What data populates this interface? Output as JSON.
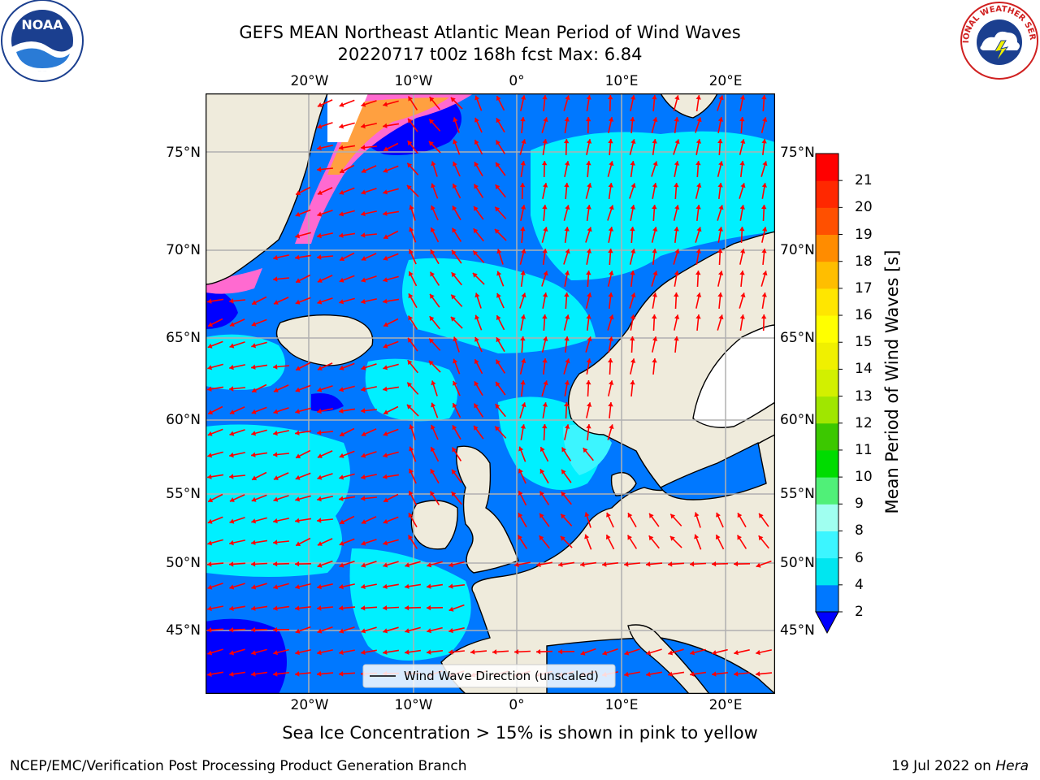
{
  "title_line1": "GEFS MEAN Northeast Atlantic Mean Period of Wind Waves",
  "title_line2": "20220717 t00z 168h fcst   Max: 6.84",
  "lon_ticks": [
    "20°W",
    "10°W",
    "0°",
    "10°E",
    "20°E"
  ],
  "lat_ticks": [
    "75°N",
    "70°N",
    "65°N",
    "60°N",
    "55°N",
    "50°N",
    "45°N"
  ],
  "colorbar": {
    "label": "Mean Period of Wind Waves [s]",
    "ticks": [
      "2",
      "4",
      "6",
      "8",
      "9",
      "10",
      "11",
      "12",
      "13",
      "14",
      "15",
      "16",
      "17",
      "18",
      "19",
      "20",
      "21"
    ],
    "colors": [
      "#0078ff",
      "#00e6f0",
      "#3cf5ff",
      "#a0fff0",
      "#50f078",
      "#00dc00",
      "#3cc800",
      "#a0e600",
      "#d2f000",
      "#f0f000",
      "#ffff00",
      "#ffe600",
      "#ffbe00",
      "#ff8c00",
      "#ff5000",
      "#ff2800",
      "#ff0000"
    ],
    "under_color": "#0000ff"
  },
  "legend_label": "Wind Wave Direction (unscaled)",
  "caption": "Sea Ice Concentration > 15% is shown in pink to yellow",
  "footer_left": "NCEP/EMC/Verification Post Processing Product Generation Branch",
  "footer_date": "19 Jul 2022 on ",
  "footer_host": "Hera",
  "logos": {
    "left": "NOAA",
    "right_text": "NATIONAL WEATHER SERVICE"
  },
  "colors": {
    "land": "#efebdc",
    "ocean": "#0078ff",
    "swell": "#00f0ff",
    "calm": "#0000ff",
    "arrow": "#ff0000",
    "grid": "#b0b0b0"
  }
}
